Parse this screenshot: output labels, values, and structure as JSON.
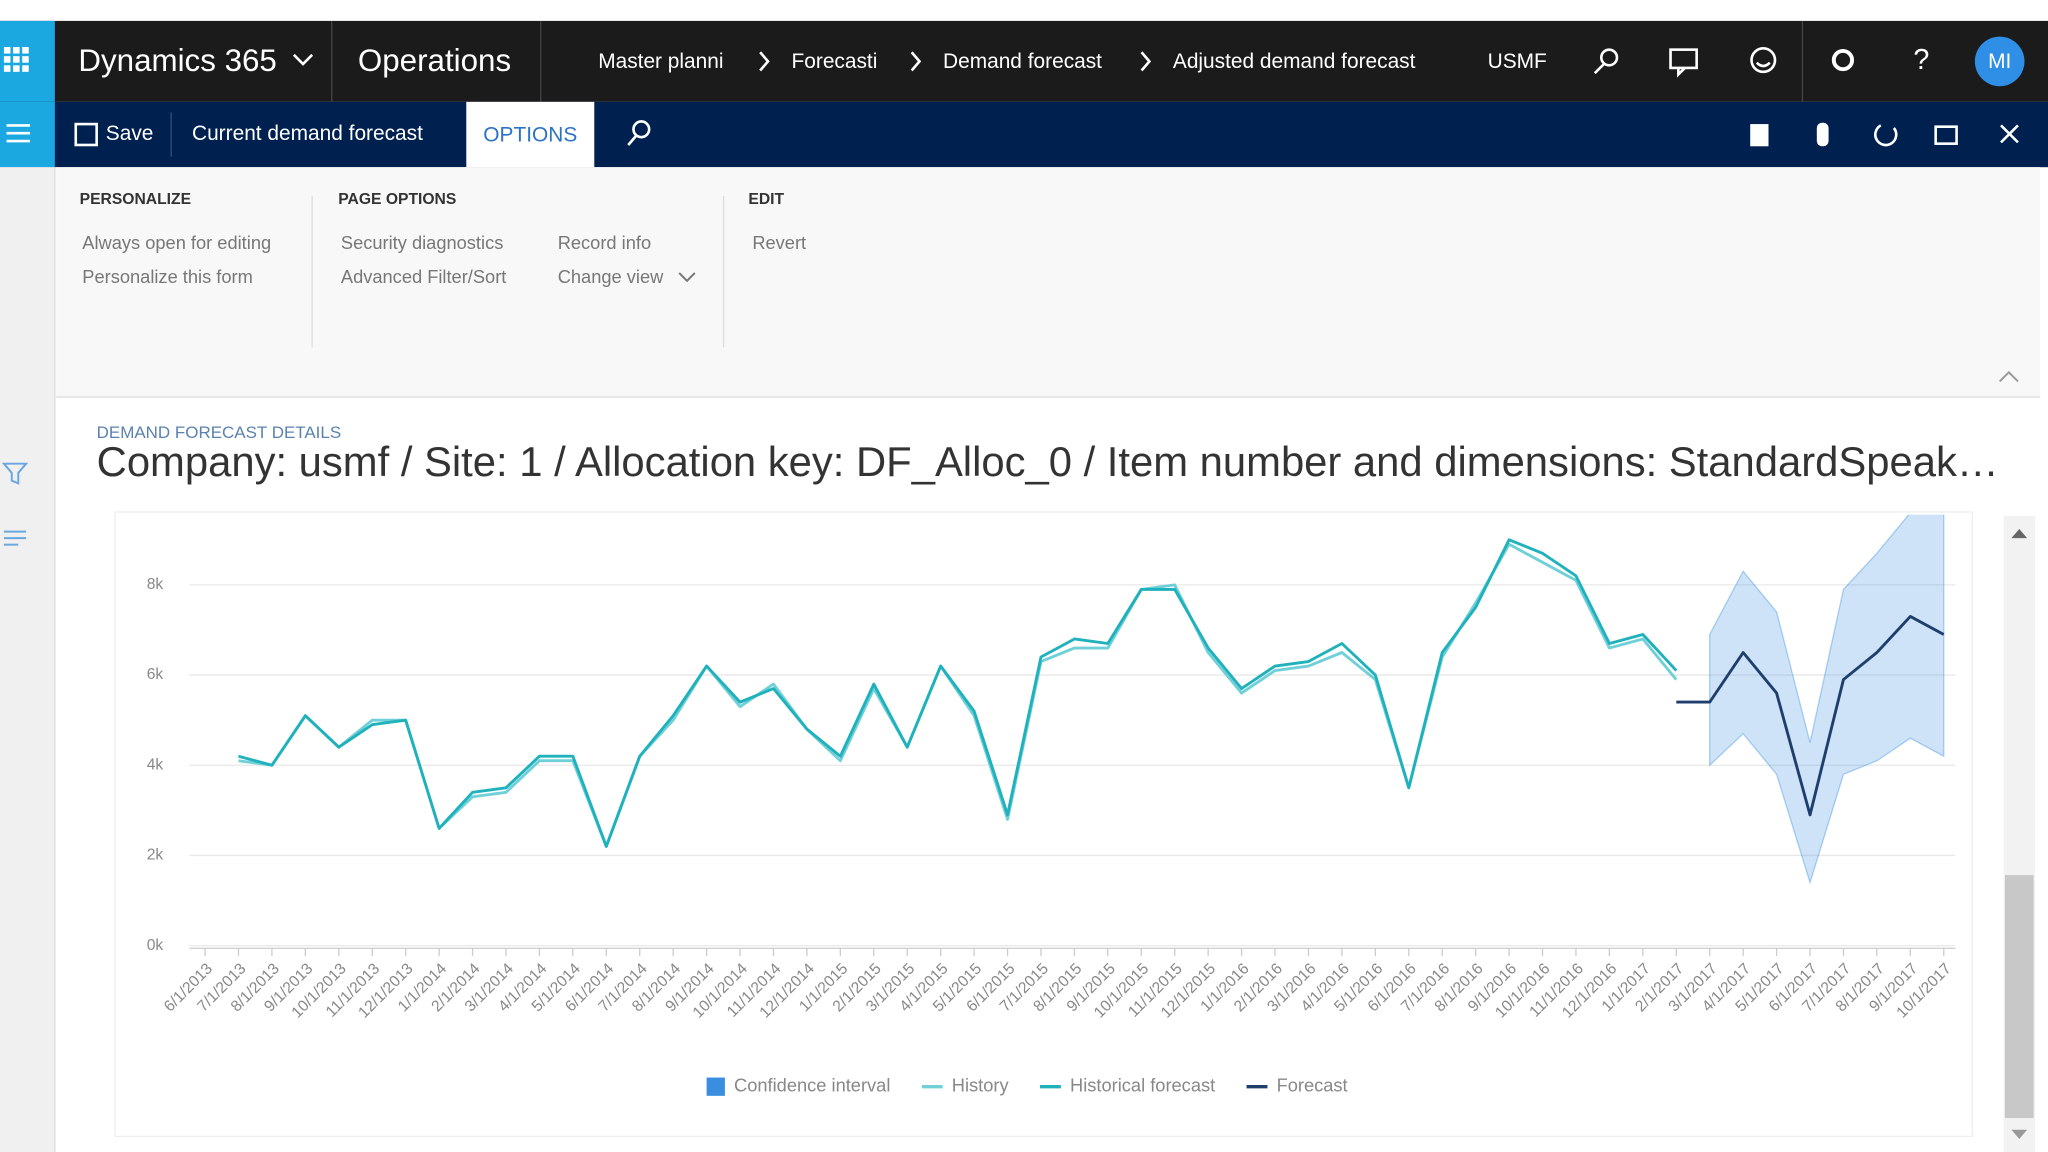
{
  "header": {
    "app": "Dynamics 365",
    "module": "Operations",
    "breadcrumbs": [
      "Master planni",
      "Forecasti",
      "Demand forecast",
      "Adjusted demand forecast"
    ],
    "company": "USMF",
    "help": "?",
    "avatar": "MI"
  },
  "toolbar": {
    "save": "Save",
    "current": "Current demand forecast",
    "options": "OPTIONS"
  },
  "ribbon": {
    "groups": [
      {
        "title": "PERSONALIZE",
        "items": [
          "Always open for editing",
          "Personalize this form"
        ]
      },
      {
        "title": "PAGE OPTIONS",
        "items": [
          "Security diagnostics",
          "Advanced Filter/Sort",
          "Record info",
          "Change view"
        ]
      },
      {
        "title": "EDIT",
        "items": [
          "Revert"
        ]
      }
    ]
  },
  "section": {
    "caption": "DEMAND FORECAST DETAILS",
    "title": "Company: usmf / Site: 1 / Allocation key: DF_Alloc_0 / Item number and dimensions: StandardSpeak…"
  },
  "chart_data": {
    "type": "line",
    "legend": "bottom",
    "grid": true,
    "categories": [
      "6/1/2013",
      "7/1/2013",
      "8/1/2013",
      "9/1/2013",
      "10/1/2013",
      "11/1/2013",
      "12/1/2013",
      "1/1/2014",
      "2/1/2014",
      "3/1/2014",
      "4/1/2014",
      "5/1/2014",
      "6/1/2014",
      "7/1/2014",
      "8/1/2014",
      "9/1/2014",
      "10/1/2014",
      "11/1/2014",
      "12/1/2014",
      "1/1/2015",
      "2/1/2015",
      "3/1/2015",
      "4/1/2015",
      "5/1/2015",
      "6/1/2015",
      "7/1/2015",
      "8/1/2015",
      "9/1/2015",
      "10/1/2015",
      "11/1/2015",
      "12/1/2015",
      "1/1/2016",
      "2/1/2016",
      "3/1/2016",
      "4/1/2016",
      "5/1/2016",
      "6/1/2016",
      "7/1/2016",
      "8/1/2016",
      "9/1/2016",
      "10/1/2016",
      "11/1/2016",
      "12/1/2016",
      "1/1/2017",
      "2/1/2017",
      "3/1/2017",
      "4/1/2017",
      "5/1/2017",
      "6/1/2017",
      "7/1/2017",
      "8/1/2017",
      "9/1/2017",
      "10/1/2017"
    ],
    "ylim": [
      0,
      9500
    ],
    "yticks": [
      {
        "value": 0,
        "label": "0k"
      },
      {
        "value": 2000,
        "label": "2k"
      },
      {
        "value": 4000,
        "label": "4k"
      },
      {
        "value": 6000,
        "label": "6k"
      },
      {
        "value": 8000,
        "label": "8k"
      }
    ],
    "series": [
      {
        "name": "Confidence interval",
        "color": "#3a8ee0",
        "type": "band",
        "upper": [
          null,
          null,
          null,
          null,
          null,
          null,
          null,
          null,
          null,
          null,
          null,
          null,
          null,
          null,
          null,
          null,
          null,
          null,
          null,
          null,
          null,
          null,
          null,
          null,
          null,
          null,
          null,
          null,
          null,
          null,
          null,
          null,
          null,
          null,
          null,
          null,
          null,
          null,
          null,
          null,
          null,
          null,
          null,
          null,
          null,
          6900,
          8300,
          7400,
          4500,
          7900,
          8700,
          9600,
          9600
        ],
        "lower": [
          null,
          null,
          null,
          null,
          null,
          null,
          null,
          null,
          null,
          null,
          null,
          null,
          null,
          null,
          null,
          null,
          null,
          null,
          null,
          null,
          null,
          null,
          null,
          null,
          null,
          null,
          null,
          null,
          null,
          null,
          null,
          null,
          null,
          null,
          null,
          null,
          null,
          null,
          null,
          null,
          null,
          null,
          null,
          null,
          null,
          4000,
          4700,
          3800,
          1400,
          3800,
          4100,
          4600,
          4200
        ]
      },
      {
        "name": "History",
        "color": "#6fd0d8",
        "values": [
          null,
          4100,
          4000,
          5100,
          4400,
          5000,
          5000,
          2600,
          3300,
          3400,
          4100,
          4100,
          2200,
          4200,
          5000,
          6200,
          5300,
          5800,
          4800,
          4100,
          5700,
          4400,
          6200,
          5100,
          2800,
          6300,
          6600,
          6600,
          7900,
          8000,
          6500,
          5600,
          6100,
          6200,
          6500,
          5900,
          3500,
          6400,
          7600,
          8900,
          8500,
          8100,
          6600,
          6800,
          5900,
          null,
          null,
          null,
          null,
          null,
          null,
          null,
          null
        ]
      },
      {
        "name": "Historical forecast",
        "color": "#1fb1bc",
        "values": [
          null,
          4200,
          4000,
          5100,
          4400,
          4900,
          5000,
          2600,
          3400,
          3500,
          4200,
          4200,
          2200,
          4200,
          5100,
          6200,
          5400,
          5700,
          4800,
          4200,
          5800,
          4400,
          6200,
          5200,
          2900,
          6400,
          6800,
          6700,
          7900,
          7900,
          6600,
          5700,
          6200,
          6300,
          6700,
          6000,
          3500,
          6500,
          7500,
          9000,
          8700,
          8200,
          6700,
          6900,
          6100,
          null,
          null,
          null,
          null,
          null,
          null,
          null,
          null
        ]
      },
      {
        "name": "Forecast",
        "color": "#1e3e6c",
        "values": [
          null,
          null,
          null,
          null,
          null,
          null,
          null,
          null,
          null,
          null,
          null,
          null,
          null,
          null,
          null,
          null,
          null,
          null,
          null,
          null,
          null,
          null,
          null,
          null,
          null,
          null,
          null,
          null,
          null,
          null,
          null,
          null,
          null,
          null,
          null,
          null,
          null,
          null,
          null,
          null,
          null,
          null,
          null,
          null,
          5400,
          5400,
          6500,
          5600,
          2900,
          5900,
          6500,
          7300,
          6900
        ]
      }
    ]
  }
}
